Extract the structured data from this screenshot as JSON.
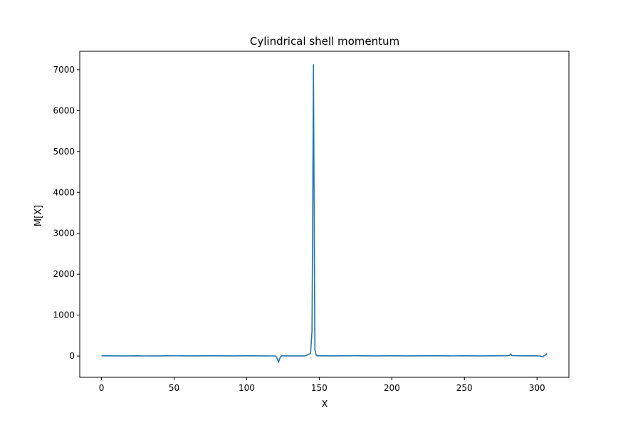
{
  "chart_data": {
    "type": "line",
    "title": "Cylindrical shell momentum",
    "xlabel": "X",
    "ylabel": "M[X]",
    "xlim": [
      -15,
      322
    ],
    "ylim": [
      -520,
      7450
    ],
    "xticks": [
      0,
      50,
      100,
      150,
      200,
      250,
      300
    ],
    "yticks": [
      0,
      1000,
      2000,
      3000,
      4000,
      5000,
      6000,
      7000
    ],
    "grid": false,
    "color": "#1f77b4",
    "series": [
      {
        "x": [
          0,
          10,
          20,
          25,
          30,
          40,
          50,
          60,
          75,
          90,
          100,
          110,
          118,
          120,
          121,
          122,
          123,
          124,
          126,
          130,
          140,
          144,
          145,
          145.5,
          146,
          146.5,
          147,
          148,
          150,
          160,
          175,
          190,
          200,
          210,
          225,
          232,
          240,
          250,
          260,
          270,
          280,
          281,
          282,
          283,
          290,
          300,
          302,
          304,
          305,
          306,
          307
        ],
        "y": [
          5,
          3,
          4,
          6,
          2,
          4,
          7,
          3,
          6,
          3,
          5,
          3,
          2,
          0,
          -60,
          -150,
          -40,
          5,
          3,
          4,
          3,
          60,
          600,
          3500,
          7120,
          3500,
          150,
          8,
          6,
          3,
          7,
          4,
          6,
          3,
          5,
          8,
          4,
          6,
          4,
          5,
          8,
          20,
          45,
          10,
          6,
          5,
          2,
          -20,
          10,
          30,
          60
        ]
      }
    ]
  }
}
